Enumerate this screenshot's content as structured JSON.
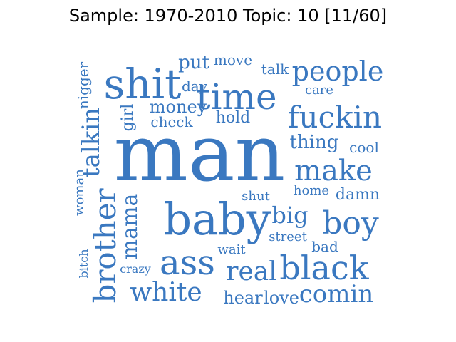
{
  "title": "Sample: 1970-2010 Topic: 10 [11/60]",
  "colors": {
    "word": "#3a78c0",
    "background": "#ffffff",
    "title": "#000000"
  },
  "words": [
    {
      "text": "man",
      "rotated": false
    },
    {
      "text": "baby",
      "rotated": false
    },
    {
      "text": "shit",
      "rotated": false
    },
    {
      "text": "time",
      "rotated": false
    },
    {
      "text": "people",
      "rotated": false
    },
    {
      "text": "fuckin",
      "rotated": false
    },
    {
      "text": "make",
      "rotated": false
    },
    {
      "text": "black",
      "rotated": false
    },
    {
      "text": "boy",
      "rotated": false
    },
    {
      "text": "ass",
      "rotated": false
    },
    {
      "text": "brother",
      "rotated": true
    },
    {
      "text": "white",
      "rotated": false
    },
    {
      "text": "real",
      "rotated": false
    },
    {
      "text": "talkin",
      "rotated": true
    },
    {
      "text": "mama",
      "rotated": true
    },
    {
      "text": "comin",
      "rotated": false
    },
    {
      "text": "big",
      "rotated": false
    },
    {
      "text": "money",
      "rotated": false
    },
    {
      "text": "put",
      "rotated": false
    },
    {
      "text": "move",
      "rotated": false
    },
    {
      "text": "talk",
      "rotated": false
    },
    {
      "text": "care",
      "rotated": false
    },
    {
      "text": "day",
      "rotated": false
    },
    {
      "text": "check",
      "rotated": false
    },
    {
      "text": "hold",
      "rotated": false
    },
    {
      "text": "girl",
      "rotated": true
    },
    {
      "text": "nigger",
      "rotated": true
    },
    {
      "text": "thing",
      "rotated": false
    },
    {
      "text": "cool",
      "rotated": false
    },
    {
      "text": "woman",
      "rotated": true
    },
    {
      "text": "home",
      "rotated": false
    },
    {
      "text": "damn",
      "rotated": false
    },
    {
      "text": "shut",
      "rotated": false
    },
    {
      "text": "street",
      "rotated": false
    },
    {
      "text": "bad",
      "rotated": false
    },
    {
      "text": "wait",
      "rotated": false
    },
    {
      "text": "crazy",
      "rotated": false
    },
    {
      "text": "bitch",
      "rotated": true
    },
    {
      "text": "hear",
      "rotated": false
    },
    {
      "text": "love",
      "rotated": false
    }
  ]
}
